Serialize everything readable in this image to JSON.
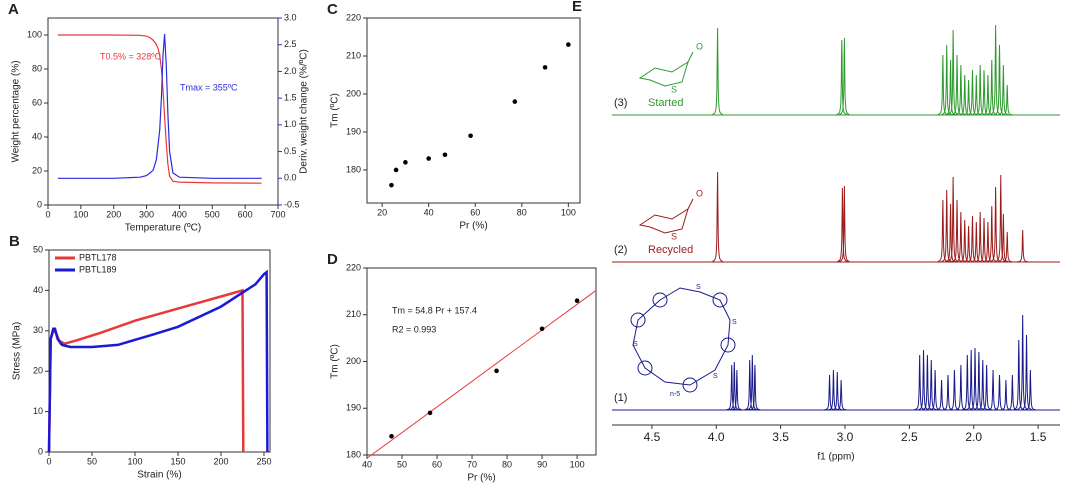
{
  "chart_data": [
    {
      "type": "line",
      "panel": "A",
      "xlabel": "Temperature (ºC)",
      "ylabel": "Weight percentage (%)",
      "y2label": "Deriv. weight change (%/ºC)",
      "xlim": [
        0,
        700
      ],
      "xticks": [
        0,
        100,
        200,
        300,
        400,
        500,
        600,
        700
      ],
      "ylim": [
        0,
        110
      ],
      "yticks": [
        0,
        20,
        40,
        60,
        80,
        100
      ],
      "y2lim": [
        -0.5,
        3.0
      ],
      "y2ticks": [
        -0.5,
        {
          "value": 0,
          "label": "0.0"
        },
        0.5,
        {
          "value": 1,
          "label": "1.0"
        },
        1.5,
        {
          "value": 2,
          "label": "2.0"
        },
        2.5,
        {
          "value": 3,
          "label": "3.0"
        }
      ],
      "annotations": [
        "T0.5% = 328ºC",
        "Tmax = 355ºC"
      ],
      "series": [
        {
          "name": "Weight",
          "color": "#e8393a",
          "x": [
            30,
            100,
            200,
            280,
            300,
            310,
            320,
            328,
            335,
            340,
            345,
            350,
            355,
            360,
            365,
            370,
            380,
            400,
            500,
            650
          ],
          "values": [
            100,
            100,
            100,
            99.8,
            99.3,
            98.5,
            97,
            95,
            92,
            88,
            80,
            68,
            52,
            36,
            24,
            17,
            14,
            13.5,
            13,
            12.8
          ]
        },
        {
          "name": "Deriv",
          "color": "#2b2bdf",
          "axis": "y2",
          "x": [
            30,
            100,
            200,
            280,
            300,
            320,
            330,
            340,
            345,
            350,
            355,
            360,
            365,
            370,
            380,
            400,
            500,
            650
          ],
          "values": [
            0,
            0,
            0,
            0.02,
            0.05,
            0.15,
            0.35,
            0.9,
            1.5,
            2.3,
            2.7,
            2.1,
            1.2,
            0.5,
            0.1,
            0.02,
            0,
            0
          ]
        }
      ]
    },
    {
      "type": "line",
      "panel": "B",
      "xlabel": "Strain (%)",
      "ylabel": "Stress (MPa)",
      "legend": "upper left",
      "xlim": [
        0,
        257
      ],
      "xticks": [
        0,
        50,
        100,
        150,
        200,
        250
      ],
      "ylim": [
        0,
        50
      ],
      "yticks": [
        0,
        10,
        20,
        30,
        40,
        50
      ],
      "series": [
        {
          "name": "PBTL178",
          "color": "#e8393a",
          "x": [
            0,
            2,
            5,
            8,
            12,
            18,
            30,
            60,
            100,
            150,
            200,
            225,
            226
          ],
          "values": [
            0,
            28,
            30,
            29.5,
            27.5,
            26.8,
            27.5,
            29.5,
            32.5,
            35.5,
            38.5,
            40,
            0
          ]
        },
        {
          "name": "PBTL189",
          "color": "#1a1ad6",
          "x": [
            0,
            2,
            5,
            7,
            10,
            15,
            25,
            50,
            80,
            120,
            150,
            200,
            240,
            250,
            253,
            254
          ],
          "values": [
            0,
            28,
            30.5,
            30.5,
            28,
            26.5,
            26,
            26,
            26.5,
            29,
            31,
            36,
            41.5,
            44,
            44.5,
            0
          ]
        }
      ]
    },
    {
      "type": "scatter",
      "panel": "C",
      "xlabel": "Pr (%)",
      "ylabel": "Tm (ºC)",
      "xlim": [
        13.5,
        105
      ],
      "xticks": [
        20,
        40,
        60,
        80,
        100
      ],
      "ylim": [
        171.3,
        220
      ],
      "yticks": [
        180,
        190,
        200,
        210,
        220
      ],
      "series": [
        {
          "color": "#000000",
          "x": [
            24,
            26,
            30,
            40,
            47,
            58,
            77,
            90,
            100
          ],
          "values": [
            176,
            180,
            182,
            183,
            184,
            189,
            198,
            207,
            213
          ]
        }
      ]
    },
    {
      "type": "scatter",
      "panel": "D",
      "xlabel": "Pr (%)",
      "ylabel": "Tm (ºC)",
      "xlim": [
        40,
        105.4
      ],
      "xticks": [
        40,
        50,
        60,
        70,
        80,
        90,
        100
      ],
      "ylim": [
        180,
        220
      ],
      "yticks": [
        180,
        190,
        200,
        210,
        220
      ],
      "annotations": [
        "Tm = 54.8 Pr + 157.4",
        "R2 = 0.993"
      ],
      "fit_line": {
        "color": "#e8393a",
        "x": [
          40,
          105.4
        ],
        "y": [
          179.3,
          215.2
        ]
      },
      "series": [
        {
          "color": "#000000",
          "x": [
            47,
            58,
            77,
            90,
            100
          ],
          "values": [
            184,
            189,
            198,
            207,
            213
          ]
        }
      ]
    },
    {
      "type": "spectrum",
      "panel": "E",
      "xlabel": "f1 (ppm)",
      "xlim": [
        4.81,
        1.33
      ],
      "xticks": [
        4.5,
        {
          "value": 4,
          "label": "4.0"
        },
        3.5,
        {
          "value": 3,
          "label": "3.0"
        },
        2.5,
        {
          "value": 2,
          "label": "2.0"
        },
        1.5
      ],
      "structure_labels": [
        "S",
        "O",
        "S",
        "O",
        "S",
        "S",
        "S",
        "S",
        "n-5"
      ],
      "series": [
        {
          "label": "(3)",
          "name": "Started",
          "color": "#2e9a2e",
          "x": [
            3.99,
            3.025,
            3.005,
            2.24,
            2.21,
            2.18,
            2.16,
            2.13,
            2.1,
            2.07,
            2.04,
            2.01,
            1.98,
            1.95,
            1.92,
            1.89,
            1.86,
            1.83,
            1.8,
            1.77,
            1.74
          ],
          "values": [
            87,
            75,
            77,
            60,
            70,
            55,
            85,
            60,
            50,
            40,
            35,
            45,
            40,
            50,
            45,
            40,
            55,
            90,
            70,
            50,
            30
          ]
        },
        {
          "label": "(2)",
          "name": "Recycled",
          "color": "#9b1b1b",
          "x": [
            3.99,
            3.02,
            3.005,
            2.24,
            2.21,
            2.18,
            2.16,
            2.13,
            2.1,
            2.07,
            2.04,
            2.01,
            1.98,
            1.95,
            1.92,
            1.89,
            1.86,
            1.83,
            1.79,
            1.77,
            1.74,
            1.62
          ],
          "values": [
            90,
            74,
            76,
            62,
            72,
            58,
            85,
            62,
            50,
            42,
            36,
            46,
            40,
            50,
            44,
            40,
            56,
            75,
            87,
            48,
            30,
            32
          ]
        },
        {
          "label": "(1)",
          "color": "#1a1a8c",
          "x": [
            3.88,
            3.86,
            3.84,
            3.74,
            3.72,
            3.7,
            3.12,
            3.09,
            3.06,
            3.03,
            2.42,
            2.39,
            2.36,
            2.33,
            2.3,
            2.25,
            2.2,
            2.15,
            2.1,
            2.05,
            2.02,
            1.99,
            1.96,
            1.93,
            1.9,
            1.85,
            1.8,
            1.75,
            1.7,
            1.65,
            1.62,
            1.59,
            1.56
          ],
          "values": [
            45,
            48,
            40,
            50,
            55,
            45,
            35,
            40,
            38,
            30,
            55,
            60,
            55,
            50,
            40,
            30,
            35,
            40,
            45,
            55,
            60,
            62,
            58,
            50,
            45,
            40,
            35,
            30,
            35,
            70,
            95,
            75,
            40
          ]
        }
      ]
    }
  ]
}
